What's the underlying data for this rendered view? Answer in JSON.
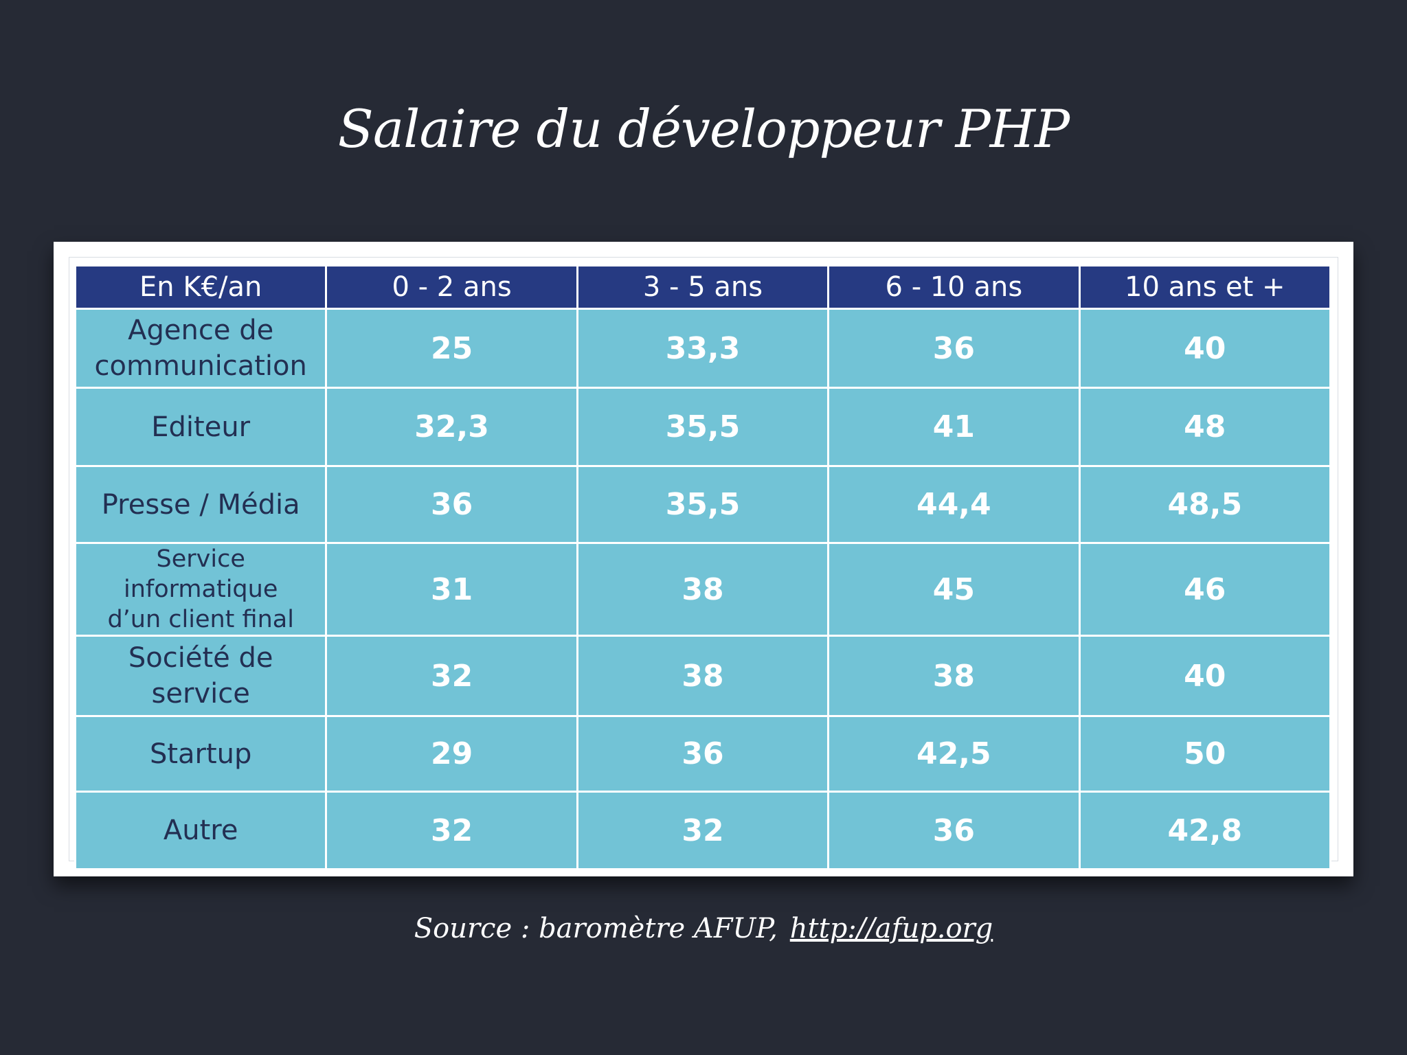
{
  "title": "Salaire du développeur PHP",
  "chart_data": {
    "type": "table",
    "columns": [
      "En K€/an",
      "0 - 2 ans",
      "3 - 5 ans",
      "6 - 10 ans",
      "10 ans et +"
    ],
    "rows": [
      {
        "label": [
          "Agence de",
          "communication"
        ],
        "values": [
          "25",
          "33,3",
          "36",
          "40"
        ]
      },
      {
        "label": [
          "Editeur"
        ],
        "values": [
          "32,3",
          "35,5",
          "41",
          "48"
        ]
      },
      {
        "label": [
          "Presse / Média"
        ],
        "values": [
          "36",
          "35,5",
          "44,4",
          "48,5"
        ]
      },
      {
        "label": [
          "Service informatique",
          "d’un client final"
        ],
        "values": [
          "31",
          "38",
          "45",
          "46"
        ]
      },
      {
        "label": [
          "Société de",
          "service"
        ],
        "values": [
          "32",
          "38",
          "38",
          "40"
        ]
      },
      {
        "label": [
          "Startup"
        ],
        "values": [
          "29",
          "36",
          "42,5",
          "50"
        ]
      },
      {
        "label": [
          "Autre"
        ],
        "values": [
          "32",
          "32",
          "36",
          "42,8"
        ]
      }
    ],
    "colors": {
      "header_bg": "#263a82",
      "cell_bg": "#72c3d6",
      "label_text": "#232f52",
      "value_text": "#ffffff"
    }
  },
  "source": {
    "text": "Source : baromètre AFUP,",
    "link": "http://afup.org"
  }
}
